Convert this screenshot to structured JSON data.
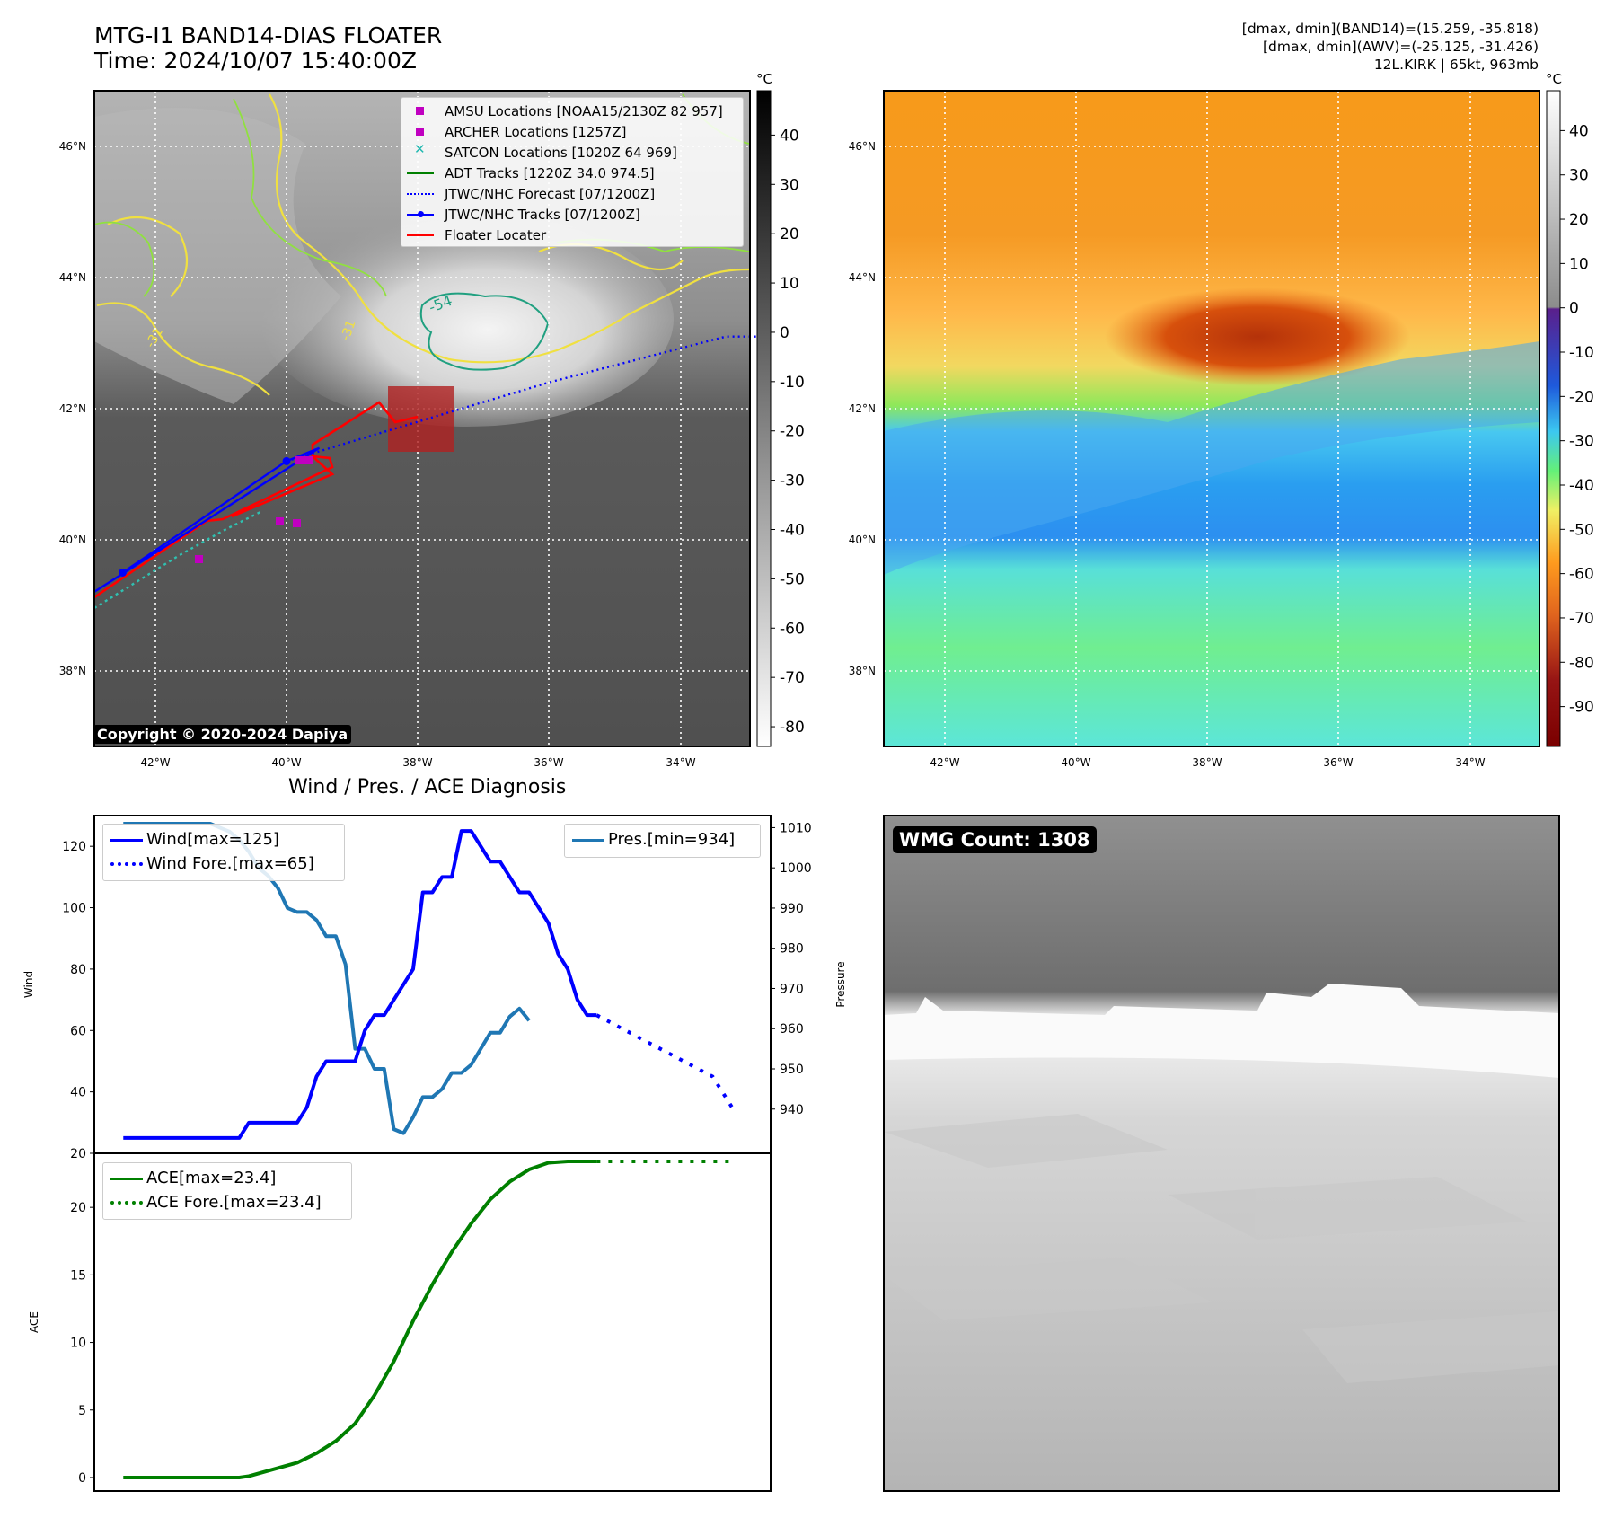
{
  "header": {
    "title_line1": "MTG-I1 BAND14-DIAS FLOATER",
    "title_line2": "Time: 2024/10/07 15:40:00Z",
    "info_line1": "[dmax, dmin](BAND14)=(15.259, -35.818)",
    "info_line2": "[dmax, dmin](AWV)=(-25.125, -31.426)",
    "info_line3": "12L.KIRK | 65kt, 963mb"
  },
  "map": {
    "lat_labels": [
      "46°N",
      "44°N",
      "42°N",
      "40°N",
      "38°N"
    ],
    "lon_labels": [
      "42°W",
      "40°W",
      "38°W",
      "36°W",
      "34°W"
    ],
    "contour_labels": [
      "-54",
      "-31",
      "-31"
    ],
    "copyright": "Copyright © 2020-2024 Dapiya",
    "legend": [
      {
        "label": "AMSU Locations [NOAA15/2130Z 82 957]",
        "kind": "square",
        "color": "#c000c0"
      },
      {
        "label": "ARCHER Locations [1257Z]",
        "kind": "square",
        "color": "#c000c0"
      },
      {
        "label": "SATCON Locations [1020Z 64 969]",
        "kind": "x",
        "color": "#20b8b0"
      },
      {
        "label": "ADT Tracks [1220Z 34.0 974.5]",
        "kind": "line",
        "color": "#008000"
      },
      {
        "label": "JTWC/NHC Forecast [07/1200Z]",
        "kind": "dotted",
        "color": "#0000ff"
      },
      {
        "label": "JTWC/NHC Tracks [07/1200Z]",
        "kind": "line-dot",
        "color": "#0000ff"
      },
      {
        "label": "Floater Locater",
        "kind": "line",
        "color": "#ff0000"
      }
    ],
    "track_points": [
      {
        "lon": -42.5,
        "lat": 39.5
      },
      {
        "lon": -40.0,
        "lat": 41.2
      },
      {
        "lon": -39.5,
        "lat": 41.4
      }
    ],
    "forecast_points": [
      {
        "lon": -40.0,
        "lat": 41.2
      },
      {
        "lon": -36.0,
        "lat": 42.4
      },
      {
        "lon": -33.3,
        "lat": 43.1
      },
      {
        "lon": -32.8,
        "lat": 43.1
      }
    ],
    "gray_colorbar": {
      "unit": "°C",
      "ticks": [
        40,
        30,
        20,
        10,
        0,
        -10,
        -20,
        -30,
        -40,
        -50,
        -60,
        -70,
        -80
      ]
    },
    "color_colorbar": {
      "unit": "°C",
      "ticks": [
        40,
        30,
        20,
        10,
        0,
        -10,
        -20,
        -30,
        -40,
        -50,
        -60,
        -70,
        -80,
        -90
      ]
    }
  },
  "diagnosis": {
    "title": "Wind / Pres. / ACE Diagnosis",
    "wind_ylabel": "Wind",
    "pres_ylabel": "Pressure",
    "ace_ylabel": "ACE",
    "wind_ticks": [
      120,
      100,
      80,
      60,
      40,
      20
    ],
    "pres_ticks": [
      1010,
      1000,
      990,
      980,
      970,
      960,
      950,
      940
    ],
    "ace_ticks": [
      20,
      15,
      10,
      5,
      0
    ],
    "legend_wind": "Wind[max=125]",
    "legend_wind_fore": "Wind Fore.[max=65]",
    "legend_pres": "Pres.[min=934]",
    "legend_ace": "ACE[max=23.4]",
    "legend_ace_fore": "ACE Fore.[max=23.4]",
    "wmg": "WMG Count: 1308"
  },
  "chart_data": [
    {
      "type": "line",
      "title": "Wind / Pres. / ACE Diagnosis",
      "ylabel": "Wind",
      "ylim": [
        20,
        130
      ],
      "series": [
        {
          "name": "Wind[max=125]",
          "color": "#0000ff",
          "style": "solid",
          "x": [
            0,
            6,
            12,
            13,
            18,
            19,
            20,
            21,
            22,
            24,
            25,
            26,
            27,
            28,
            30,
            31,
            32,
            33,
            34,
            35,
            36,
            37,
            38,
            39,
            40,
            41,
            42,
            43,
            44,
            45,
            46,
            47,
            48,
            49,
            50,
            51,
            52
          ],
          "values": [
            25,
            25,
            25,
            30,
            30,
            35,
            45,
            50,
            50,
            50,
            60,
            65,
            65,
            70,
            80,
            105,
            105,
            110,
            110,
            125,
            125,
            120,
            115,
            115,
            110,
            105,
            105,
            100,
            95,
            85,
            80,
            70,
            65,
            65,
            null,
            null,
            null
          ]
        },
        {
          "name": "Wind Fore.[max=65]",
          "color": "#0000ff",
          "style": "dotted",
          "x": [
            49,
            52,
            55,
            58,
            61,
            63
          ],
          "values": [
            65,
            60,
            55,
            50,
            45,
            35
          ]
        },
        {
          "name": "Pres.[min=934]",
          "axis": "right",
          "ylim": [
            929,
            1013
          ],
          "color": "#1f77b4",
          "style": "solid",
          "x": [
            0,
            9,
            10,
            11,
            12,
            13,
            14,
            15,
            16,
            17,
            18,
            19,
            20,
            21,
            22,
            23,
            24,
            25,
            26,
            27,
            28,
            29,
            30,
            31,
            32,
            33,
            34,
            35,
            36,
            37,
            38,
            39,
            40,
            41,
            42,
            43,
            44,
            45,
            46,
            47,
            48,
            49
          ],
          "values": [
            1011,
            1011,
            1010,
            1009,
            1007,
            1004,
            1000,
            998,
            995,
            990,
            989,
            989,
            987,
            983,
            983,
            976,
            955,
            955,
            950,
            950,
            935,
            934,
            938,
            943,
            943,
            945,
            949,
            949,
            951,
            955,
            959,
            959,
            963,
            965,
            962,
            null,
            null,
            null,
            null,
            null,
            null,
            null
          ]
        }
      ]
    },
    {
      "type": "line",
      "ylabel": "ACE",
      "ylim": [
        -1,
        24
      ],
      "series": [
        {
          "name": "ACE[max=23.4]",
          "color": "#008000",
          "style": "solid",
          "x": [
            0,
            12,
            13,
            15,
            18,
            20,
            22,
            24,
            26,
            28,
            30,
            32,
            34,
            36,
            38,
            40,
            42,
            44,
            46,
            48,
            49
          ],
          "values": [
            0,
            0,
            0.1,
            0.5,
            1.1,
            1.8,
            2.7,
            4.0,
            6.1,
            8.6,
            11.6,
            14.3,
            16.7,
            18.8,
            20.6,
            21.9,
            22.8,
            23.3,
            23.4,
            23.4,
            23.4
          ]
        },
        {
          "name": "ACE Fore.[max=23.4]",
          "color": "#008000",
          "style": "dotted",
          "x": [
            49,
            63
          ],
          "values": [
            23.4,
            23.4
          ]
        }
      ]
    }
  ]
}
